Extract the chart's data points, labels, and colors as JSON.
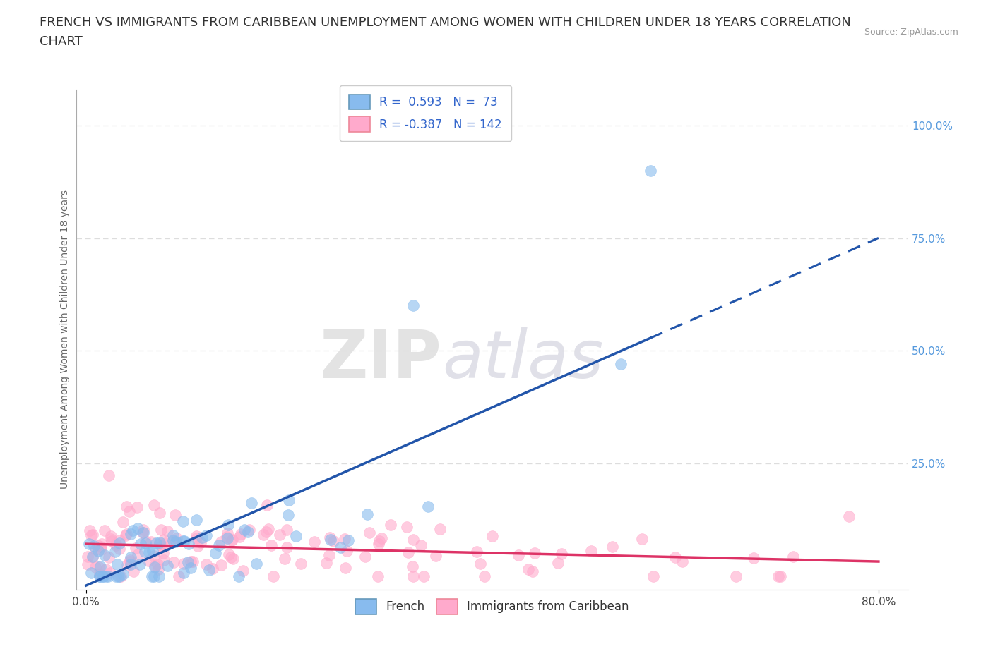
{
  "title": "FRENCH VS IMMIGRANTS FROM CARIBBEAN UNEMPLOYMENT AMONG WOMEN WITH CHILDREN UNDER 18 YEARS CORRELATION\nCHART",
  "source": "Source: ZipAtlas.com",
  "ylabel": "Unemployment Among Women with Children Under 18 years",
  "xlabel_ticks": [
    "0.0%",
    "80.0%"
  ],
  "ytick_labels": [
    "25.0%",
    "50.0%",
    "75.0%",
    "100.0%"
  ],
  "ytick_values": [
    25,
    50,
    75,
    100
  ],
  "xlim": [
    0,
    80
  ],
  "ylim": [
    0,
    108
  ],
  "legend_r_french": "0.593",
  "legend_n_french": "73",
  "legend_r_carib": "-0.387",
  "legend_n_carib": "142",
  "color_french": "#88BBEE",
  "color_carib": "#FFAACC",
  "color_french_line": "#2255AA",
  "color_carib_line": "#DD3366",
  "watermark_zip": "ZIP",
  "watermark_atlas": "atlas",
  "bg_color": "#FFFFFF",
  "grid_color": "#DDDDDD",
  "title_fontsize": 13,
  "axis_label_fontsize": 10,
  "tick_fontsize": 11,
  "legend_fontsize": 12
}
